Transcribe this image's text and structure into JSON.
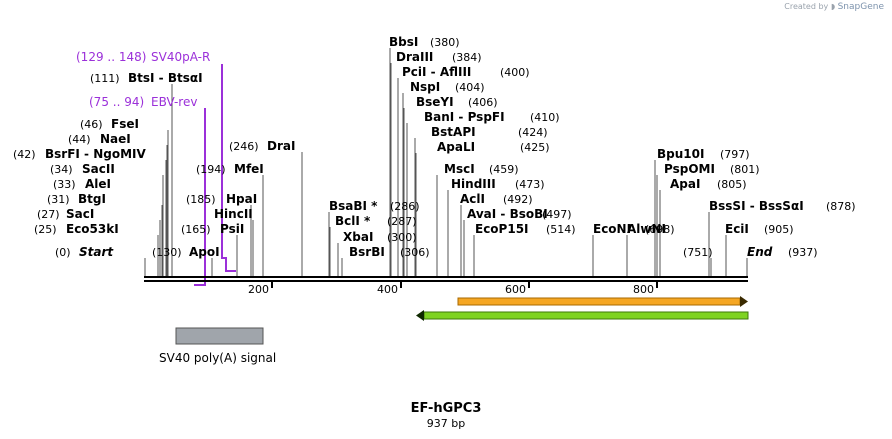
{
  "credit": {
    "text": "Created by",
    "brand": "SnapGene"
  },
  "construct": {
    "name": "EF-hGPC3",
    "length_label": "937 bp",
    "length": 937
  },
  "ticks": [
    "200",
    "400",
    "600",
    "800"
  ],
  "sites": [
    {
      "label": "(0)",
      "name": "Start",
      "style": "italic"
    },
    {
      "label": "(25)",
      "name": "Eco53kI"
    },
    {
      "label": "(27)",
      "name": "SacI"
    },
    {
      "label": "(31)",
      "name": "BtgI"
    },
    {
      "label": "(33)",
      "name": "AleI"
    },
    {
      "label": "(34)",
      "name": "SacII"
    },
    {
      "label": "(42)",
      "name": "BsrFI - NgoMIV"
    },
    {
      "label": "(44)",
      "name": "NaeI"
    },
    {
      "label": "(46)",
      "name": "FseI"
    },
    {
      "label": "(111)",
      "name": "BtsI - BtsαI"
    },
    {
      "label": "(130)",
      "name": "ApoI"
    },
    {
      "label": "(165)",
      "name": "PsiI"
    },
    {
      "label": "(185)",
      "name": "HpaI"
    },
    {
      "label": "",
      "name": "HincII"
    },
    {
      "label": "(194)",
      "name": "MfeI"
    },
    {
      "label": "(246)",
      "name": "DraI"
    },
    {
      "label": "(286)",
      "name": "BsaBI *"
    },
    {
      "label": "(287)",
      "name": "BclI *"
    },
    {
      "label": "(300)",
      "name": "XbaI"
    },
    {
      "label": "(306)",
      "name": "BsrBI"
    },
    {
      "label": "(380)",
      "name": "BbsI"
    },
    {
      "label": "(384)",
      "name": "DraIII"
    },
    {
      "label": "(400)",
      "name": "PciI - AflIII"
    },
    {
      "label": "(404)",
      "name": "NspI"
    },
    {
      "label": "(406)",
      "name": "BseYI"
    },
    {
      "label": "(410)",
      "name": "BanI - PspFI"
    },
    {
      "label": "(424)",
      "name": "BstAPI"
    },
    {
      "label": "(425)",
      "name": "ApaLI"
    },
    {
      "label": "(459)",
      "name": "MscI"
    },
    {
      "label": "(473)",
      "name": "HindIII"
    },
    {
      "label": "(492)",
      "name": "AclI"
    },
    {
      "label": "(497)",
      "name": "AvaI - BsoBI"
    },
    {
      "label": "(514)",
      "name": "EcoP15I"
    },
    {
      "label": "",
      "name": "EcoNI"
    },
    {
      "label": "(698)",
      "name": "AlwNI"
    },
    {
      "label": "(751)",
      "name": ""
    },
    {
      "label": "(797)",
      "name": "Bpu10I"
    },
    {
      "label": "(801)",
      "name": "PspOMI"
    },
    {
      "label": "(805)",
      "name": "ApaI"
    },
    {
      "label": "(878)",
      "name": "BssSI - BssSαI"
    },
    {
      "label": "(905)",
      "name": "EciI"
    },
    {
      "label": "(937)",
      "name": "End",
      "style": "italic"
    }
  ],
  "primers": [
    {
      "range": "(129 .. 148)",
      "name": "SV40pA-R"
    },
    {
      "range": "(75 .. 94)",
      "name": "EBV-rev"
    }
  ],
  "features": [
    {
      "name": "SV40 poly(A) signal",
      "color": "#a0a5ab"
    },
    {
      "name": "",
      "color": "#f5a623"
    },
    {
      "name": "",
      "color": "#7ed321"
    }
  ],
  "colors": {
    "primer": "#9b30d9",
    "backbone": "#000000"
  }
}
